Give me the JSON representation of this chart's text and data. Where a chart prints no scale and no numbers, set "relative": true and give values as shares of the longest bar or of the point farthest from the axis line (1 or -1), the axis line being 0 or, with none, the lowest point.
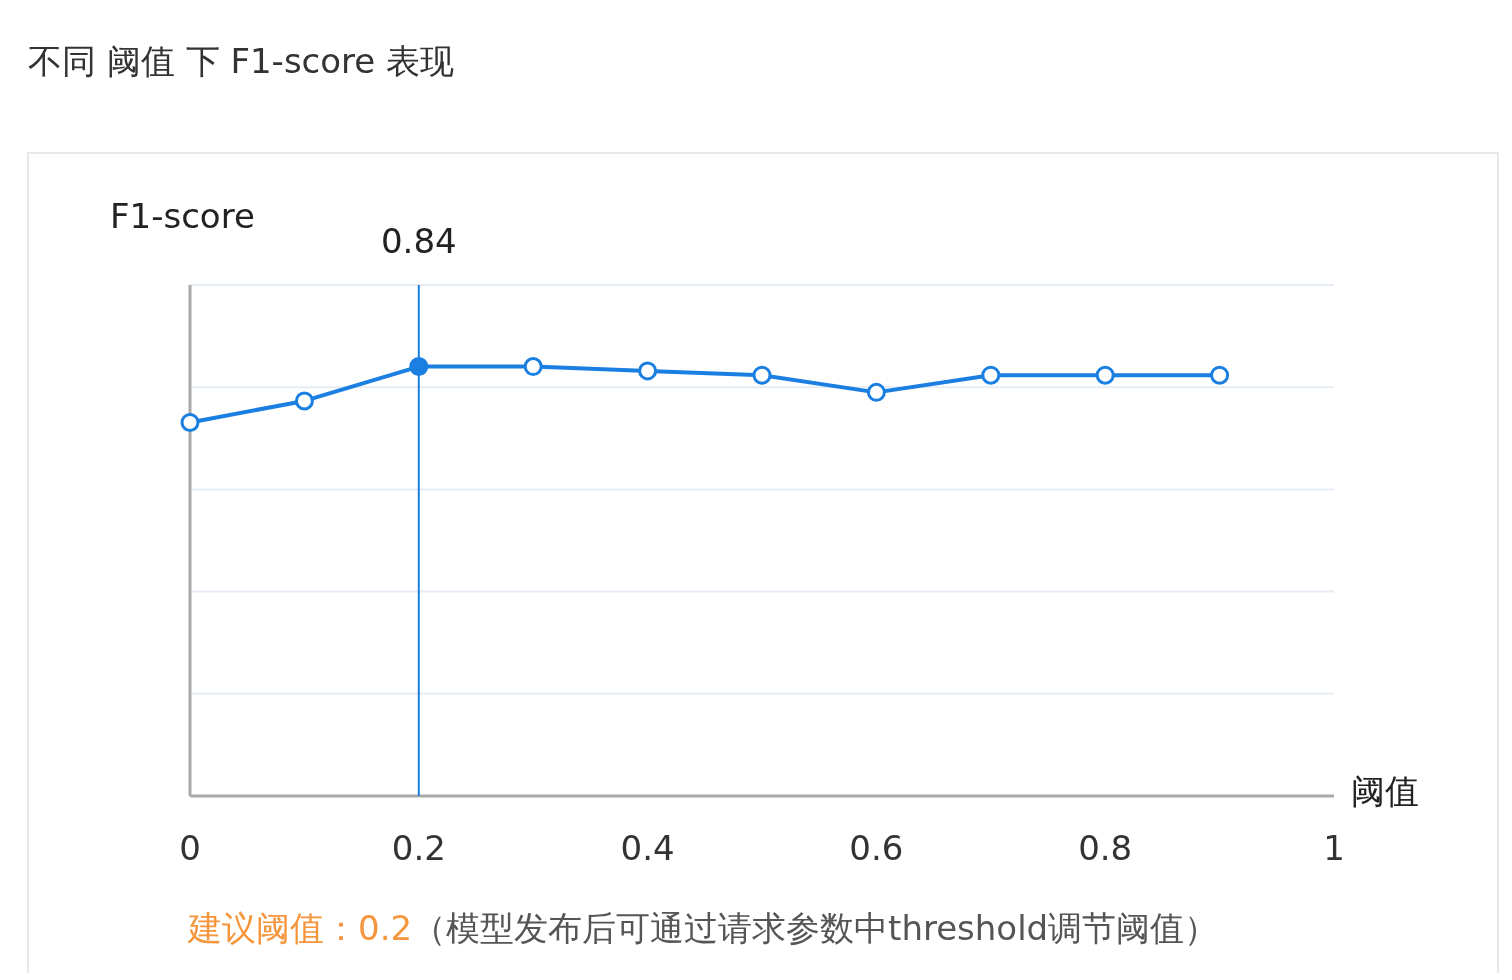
{
  "chart_data": {
    "type": "line",
    "title": "不同 阈值 下 F1-score 表现",
    "xlabel": "阈值",
    "ylabel": "F1-score",
    "x": [
      0,
      0.1,
      0.2,
      0.3,
      0.4,
      0.5,
      0.6,
      0.7,
      0.8,
      0.9
    ],
    "series": [
      {
        "color": "#1a7fe0",
        "values": [
          0.87,
          0.92,
          1,
          1,
          0.99,
          0.98,
          0.94,
          0.98,
          0.98,
          0.98
        ]
      }
    ],
    "relative": true,
    "xlim": [
      0,
      1
    ],
    "xticks": [
      0,
      0.2,
      0.4,
      0.6,
      0.8,
      1
    ],
    "tick_labels": "x",
    "grid": "y",
    "marker": "circle",
    "line_style": "solid",
    "ref_lines": [
      {
        "axis": "x",
        "value": 0.2,
        "color": "#1a7fe0"
      }
    ],
    "annotations": [
      "0.84",
      "建议阈值：0.2",
      "（模型发布后可通过请求参数中threshold调节阈值）"
    ]
  }
}
